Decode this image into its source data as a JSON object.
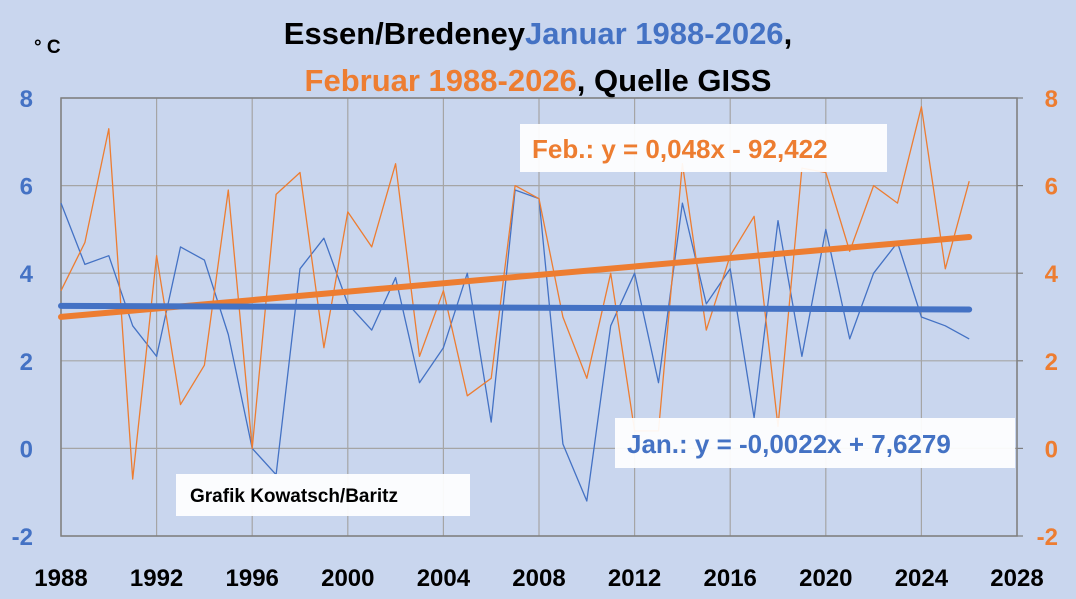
{
  "chart_data": {
    "type": "line",
    "title_parts": [
      {
        "text": "Essen/Bredeney",
        "color": "#000000"
      },
      {
        "text": "Januar 1988-2026",
        "color": "#4472c4"
      },
      {
        "text": ",",
        "color": "#000000"
      }
    ],
    "title_line2_parts": [
      {
        "text": "Februar 1988-2026",
        "color": "#ed7d31"
      },
      {
        "text": ", Quelle GISS",
        "color": "#000000"
      }
    ],
    "unit_label": "° C",
    "credit": "Grafik Kowatsch/Baritz",
    "xlim": [
      1988,
      2028
    ],
    "ylim": [
      -2,
      8
    ],
    "x_ticks": [
      "1988",
      "1992",
      "1996",
      "2000",
      "2004",
      "2008",
      "2012",
      "2016",
      "2020",
      "2024",
      "2028"
    ],
    "y_ticks_left": [
      "-2",
      "0",
      "2",
      "4",
      "6",
      "8"
    ],
    "y_ticks_right": [
      "-2",
      "0",
      "2",
      "4",
      "6",
      "8"
    ],
    "grid": true,
    "colors": {
      "jan": "#4472c4",
      "feb": "#ed7d31",
      "background": "#c9d6ee",
      "grid": "#a5a5a5"
    },
    "x": [
      1988,
      1989,
      1990,
      1991,
      1992,
      1993,
      1994,
      1995,
      1996,
      1997,
      1998,
      1999,
      2000,
      2001,
      2002,
      2003,
      2004,
      2005,
      2006,
      2007,
      2008,
      2009,
      2010,
      2011,
      2012,
      2013,
      2014,
      2015,
      2016,
      2017,
      2018,
      2019,
      2020,
      2021,
      2022,
      2023,
      2024,
      2025,
      2026
    ],
    "series": [
      {
        "key": "jan",
        "values": [
          5.6,
          4.2,
          4.4,
          2.8,
          2.1,
          4.6,
          4.3,
          2.6,
          0.0,
          -0.6,
          4.1,
          4.8,
          3.3,
          2.7,
          3.9,
          1.5,
          2.3,
          4.0,
          0.6,
          5.9,
          5.7,
          0.1,
          -1.2,
          2.8,
          4.0,
          1.5,
          5.6,
          3.3,
          4.1,
          0.7,
          5.2,
          2.1,
          5.0,
          2.5,
          4.0,
          4.7,
          3.0,
          2.8,
          2.5
        ]
      },
      {
        "key": "feb",
        "values": [
          3.6,
          4.7,
          7.3,
          -0.7,
          4.4,
          1.0,
          1.9,
          5.9,
          0.0,
          5.8,
          6.3,
          2.3,
          5.4,
          4.6,
          6.5,
          2.1,
          3.6,
          1.2,
          1.6,
          6.0,
          5.7,
          3.0,
          1.6,
          4.0,
          0.4,
          0.4,
          6.5,
          2.7,
          4.4,
          5.3,
          0.5,
          6.4,
          6.3,
          4.5,
          6.0,
          5.6,
          7.8,
          4.1,
          6.1
        ]
      }
    ],
    "trendlines": [
      {
        "key": "feb",
        "label": "Feb.: y = 0,048x - 92,422",
        "slope": 0.048,
        "intercept": -92.422
      },
      {
        "key": "jan",
        "label": "Jan.: y = -0,0022x + 7,6279",
        "slope": -0.0022,
        "intercept": 7.6279
      }
    ]
  }
}
